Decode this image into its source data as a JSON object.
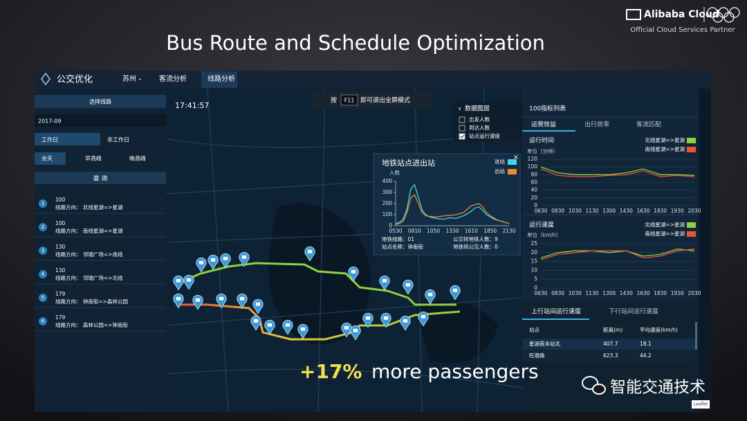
{
  "header": {
    "title": "Bus Route and Schedule Optimization",
    "brand": "Alibaba Cloud",
    "partner": "Official Cloud Services Partner"
  },
  "nav": {
    "app": "公交优化",
    "city": "苏州",
    "tabs": [
      "客流分析",
      "线路分析"
    ]
  },
  "clock": "17:41:57",
  "hint": {
    "before": "按",
    "key": "F11",
    "after": "即可退出全屏模式"
  },
  "left": {
    "select": "选择线路",
    "month": "2017-09",
    "day_types": [
      "工作日",
      "非工作日"
    ],
    "periods": [
      "全天",
      "早高峰",
      "晚高峰"
    ],
    "query": "查 询",
    "routes": [
      {
        "index": 1,
        "id": "100",
        "direction": "线路方向： 北线星湖=>星湖"
      },
      {
        "index": 2,
        "id": "100",
        "direction": "线路方向： 南线星湖=>星湖"
      },
      {
        "index": 3,
        "id": "130",
        "direction": "线路方向： 邻瑞广场=>南线"
      },
      {
        "index": 4,
        "id": "130",
        "direction": "线路方向： 邻瑞广场=>北线"
      },
      {
        "index": 5,
        "id": "179",
        "direction": "线路方向： 钟南街=>森林公园"
      },
      {
        "index": 6,
        "id": "179",
        "direction": "线路方向： 森林公园=>钟南街"
      }
    ]
  },
  "layers": {
    "title": "数据图层",
    "items": [
      {
        "label": "出发人数",
        "checked": false
      },
      {
        "label": "到达人数",
        "checked": false
      },
      {
        "label": "站点运行速度",
        "checked": true
      }
    ]
  },
  "metro_stats": [
    "地铁线路：01",
    "公交转地铁人数：9",
    "站点名称：钟南街",
    "地铁转公交人数：0"
  ],
  "right": {
    "title": "100指标列表",
    "tabs": [
      "运营效益",
      "出行效率",
      "客流匹配"
    ]
  },
  "chart_data": [
    {
      "type": "line",
      "title": "地铁站点进出站",
      "y_label": "人数",
      "categories": [
        "0530",
        null,
        null,
        null,
        null,
        "0810",
        null,
        null,
        null,
        null,
        "1050",
        null,
        null,
        null,
        null,
        "1330",
        null,
        null,
        null,
        null,
        "1610",
        null,
        null,
        null,
        null,
        "1850",
        null,
        null,
        null,
        null,
        "2130"
      ],
      "series": [
        {
          "name": "进站",
          "color": "#3fd8e8",
          "values": [
            20,
            30,
            60,
            150,
            330,
            370,
            260,
            140,
            100,
            80,
            70,
            65,
            60,
            60,
            70,
            70,
            65,
            80,
            90,
            110,
            130,
            160,
            170,
            140,
            100,
            80,
            60,
            50,
            40,
            30,
            20
          ]
        },
        {
          "name": "出站",
          "color": "#f08a2c",
          "values": [
            10,
            20,
            40,
            120,
            250,
            280,
            200,
            120,
            90,
            85,
            80,
            80,
            85,
            90,
            95,
            95,
            100,
            110,
            120,
            150,
            180,
            190,
            200,
            170,
            120,
            90,
            70,
            50,
            40,
            30,
            20
          ]
        }
      ],
      "ylim": [
        0,
        400
      ],
      "yticks": [
        0,
        100,
        200,
        300,
        400
      ],
      "grid": false
    },
    {
      "type": "line",
      "title": "运行时间",
      "y_label": "单位（分钟）",
      "categories": [
        "0630",
        "0830",
        "1030",
        "1130",
        "1300",
        "1430",
        "1630",
        "1830",
        "1930",
        "2030"
      ],
      "series": [
        {
          "name": "北线星湖=>星湖",
          "color": "#8fd13f",
          "values": [
            100,
            85,
            80,
            80,
            80,
            85,
            95,
            80,
            80,
            78
          ]
        },
        {
          "name": "南线星湖=>星湖",
          "color": "#e8553a",
          "values": [
            95,
            78,
            75,
            75,
            78,
            80,
            90,
            75,
            78,
            75
          ]
        }
      ],
      "ylim": [
        0,
        120
      ],
      "yticks": [
        0,
        20,
        40,
        60,
        80,
        100,
        120
      ],
      "grid": true
    },
    {
      "type": "line",
      "title": "运行速度",
      "y_label": "单位（km/h）",
      "categories": [
        "0630",
        "0830",
        "1030",
        "1130",
        "1300",
        "1430",
        "1630",
        "1830",
        "1930",
        "2030"
      ],
      "series": [
        {
          "name": "北线星湖=>星湖",
          "color": "#8fd13f",
          "values": [
            17,
            20,
            21,
            21,
            20,
            21,
            18,
            19,
            22,
            21
          ]
        },
        {
          "name": "南线星湖=>星湖",
          "color": "#e8553a",
          "values": [
            16,
            19,
            20,
            21,
            21,
            21,
            17,
            18,
            21,
            22
          ]
        }
      ],
      "ylim": [
        0,
        25
      ],
      "yticks": [
        0,
        5,
        10,
        15,
        20,
        25
      ],
      "grid": true
    }
  ],
  "table": {
    "tabs": [
      "上行站间运行速度",
      "下行站间运行速度"
    ],
    "columns": [
      "站点",
      "距离(m)",
      "平均速度(km/h)"
    ],
    "rows": [
      [
        "星湖首末站北",
        407.7,
        18.1
      ],
      [
        "旺墩路",
        623.3,
        44.2
      ]
    ]
  },
  "overlay": {
    "highlight": "+17%",
    "text": "more passengers"
  },
  "watermark": "智能交通技术",
  "map_credit": "Leaflet"
}
